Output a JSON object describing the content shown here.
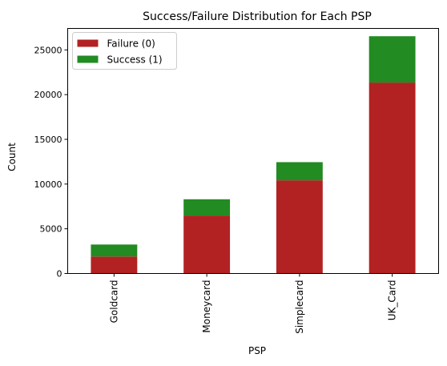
{
  "chart_data": {
    "type": "bar",
    "stacked": true,
    "title": "Success/Failure Distribution for Each PSP",
    "xlabel": "PSP",
    "ylabel": "Count",
    "categories": [
      "Goldcard",
      "Moneycard",
      "Simplecard",
      "UK_Card"
    ],
    "series": [
      {
        "name": "Failure (0)",
        "color": "#b22222",
        "values": [
          1900,
          6480,
          10420,
          21350
        ]
      },
      {
        "name": "Success (1)",
        "color": "#228b22",
        "values": [
          1340,
          1820,
          2030,
          5180
        ]
      }
    ],
    "ylim": [
      0,
      27400
    ],
    "yticks": [
      0,
      5000,
      10000,
      15000,
      20000,
      25000
    ],
    "ytick_labels": [
      "0",
      "5000",
      "10000",
      "15000",
      "20000",
      "25000"
    ],
    "legend_position": "top-left",
    "grid": false
  }
}
